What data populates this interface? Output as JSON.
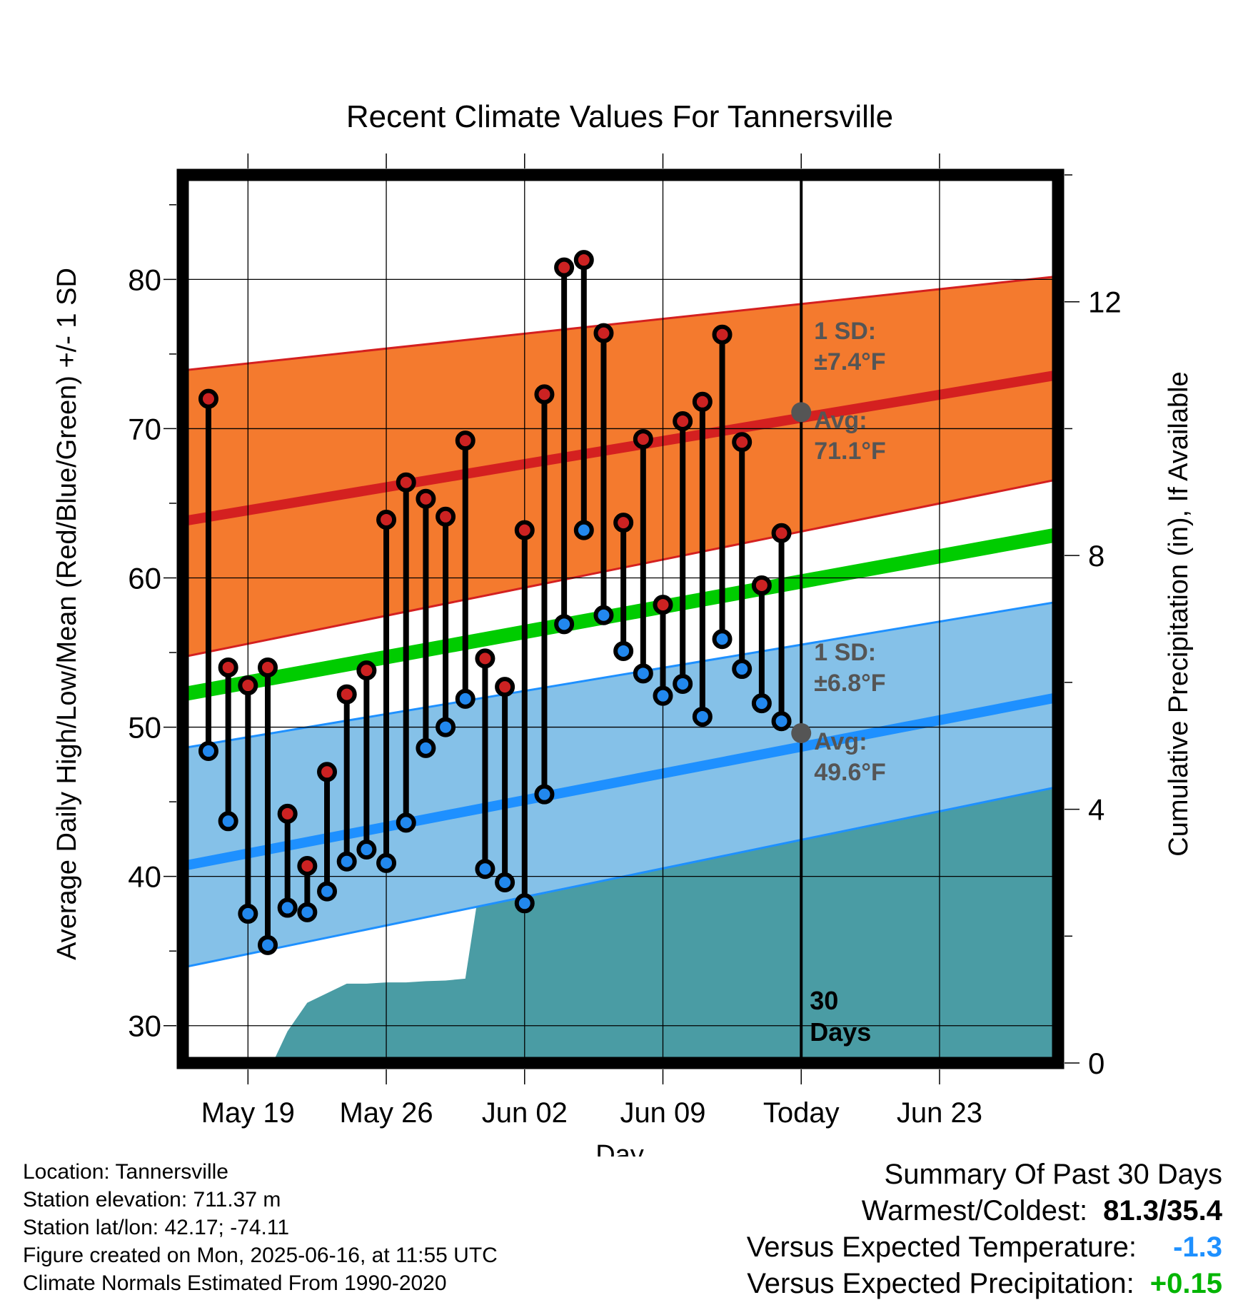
{
  "title": "Recent Climate Values For Tannersville",
  "y_left_label": "Average Daily High/Low/Mean (Red/Blue/Green) +/- 1 SD",
  "y_right_label": "Cumulative Precipitation (in), If Available",
  "x_label": "Day",
  "colors": {
    "high_marker": "#cc2222",
    "low_marker": "#2288ee",
    "high_band": "#f47a2e",
    "high_band_edge": "#d42020",
    "high_mean": "#d42020",
    "low_band": "#85c1e8",
    "low_band_edge": "#1e90ff",
    "low_mean": "#1e90ff",
    "mean_line": "#00cc00",
    "precip": "#4a9ca4",
    "annotation": "#555555",
    "temp_anomaly": "#1e90ff",
    "precip_anomaly": "#00b400"
  },
  "annotations": {
    "high_sd": "1 SD:",
    "high_sd_value": "±7.4°F",
    "high_avg": "Avg:",
    "high_avg_value": "71.1°F",
    "low_sd": "1 SD:",
    "low_sd_value": "±6.8°F",
    "low_avg": "Avg:",
    "low_avg_value": "49.6°F",
    "window_line1": "30",
    "window_line2": "Days"
  },
  "chart_data": {
    "type": "line",
    "title": "Recent Climate Values For Tannersville",
    "xlabel": "Day",
    "ylabel": "Average Daily High/Low/Mean (Red/Blue/Green) +/- 1 SD",
    "y2label": "Cumulative Precipitation (in), If Available",
    "x_range": [
      "2025-05-15.7",
      "2025-06-29"
    ],
    "ylim": [
      27.5,
      87
    ],
    "y2lim": [
      0,
      14
    ],
    "y_ticks": [
      30,
      40,
      50,
      60,
      70,
      80
    ],
    "y2_ticks": [
      0,
      4,
      8,
      12
    ],
    "x_ticks": [
      {
        "date": "2025-05-19",
        "label": "May 19"
      },
      {
        "date": "2025-05-26",
        "label": "May 26"
      },
      {
        "date": "2025-06-02",
        "label": "Jun 02"
      },
      {
        "date": "2025-06-09",
        "label": "Jun 09"
      },
      {
        "date": "2025-06-16",
        "label": "Today"
      },
      {
        "date": "2025-06-23",
        "label": "Jun 23"
      }
    ],
    "grid": true,
    "today": "2025-06-16",
    "days": [
      "2025-05-17",
      "2025-05-18",
      "2025-05-19",
      "2025-05-20",
      "2025-05-21",
      "2025-05-22",
      "2025-05-23",
      "2025-05-24",
      "2025-05-25",
      "2025-05-26",
      "2025-05-27",
      "2025-05-28",
      "2025-05-29",
      "2025-05-30",
      "2025-05-31",
      "2025-06-01",
      "2025-06-02",
      "2025-06-03",
      "2025-06-04",
      "2025-06-05",
      "2025-06-06",
      "2025-06-07",
      "2025-06-08",
      "2025-06-09",
      "2025-06-10",
      "2025-06-11",
      "2025-06-12",
      "2025-06-13",
      "2025-06-14",
      "2025-06-15"
    ],
    "highs": [
      72.0,
      54.0,
      52.8,
      54.0,
      44.2,
      40.7,
      47.0,
      52.2,
      53.8,
      63.9,
      66.4,
      65.3,
      64.1,
      69.2,
      54.6,
      52.7,
      63.2,
      72.3,
      80.8,
      81.3,
      76.4,
      63.7,
      69.3,
      58.2,
      70.5,
      71.8,
      76.3,
      69.1,
      59.5,
      63.0
    ],
    "lows": [
      48.4,
      43.7,
      37.5,
      35.4,
      37.9,
      37.6,
      39.0,
      41.0,
      41.8,
      40.9,
      43.6,
      48.6,
      50.0,
      51.9,
      40.5,
      39.6,
      38.2,
      45.5,
      56.9,
      63.2,
      57.5,
      55.1,
      53.6,
      52.1,
      52.9,
      50.7,
      55.9,
      53.9,
      51.6,
      50.4
    ],
    "normals": {
      "days": [
        "2025-05-15.7",
        "2025-06-29"
      ],
      "high_mean": [
        63.8,
        73.6
      ],
      "high_upper": [
        73.9,
        80.2
      ],
      "high_lower": [
        54.7,
        66.6
      ],
      "low_mean": [
        40.7,
        52.0
      ],
      "low_upper": [
        48.6,
        58.4
      ],
      "low_lower": [
        33.9,
        46.0
      ],
      "avg_mean": [
        52.2,
        62.9
      ]
    },
    "today_high_avg": 71.1,
    "today_low_avg": 49.6,
    "precip_cumulative": {
      "days": [
        "2025-05-19.8",
        "2025-05-20.4",
        "2025-05-21",
        "2025-05-22",
        "2025-05-23",
        "2025-05-24",
        "2025-05-25",
        "2025-05-26",
        "2025-05-27",
        "2025-05-28",
        "2025-05-29",
        "2025-05-30",
        "2025-05-31",
        "2025-06-01",
        "2025-06-02",
        "2025-06-03",
        "2025-06-04",
        "2025-06-05",
        "2025-06-06",
        "2025-06-07",
        "2025-06-08",
        "2025-06-09",
        "2025-06-10",
        "2025-06-11",
        "2025-06-12",
        "2025-06-13",
        "2025-06-14",
        "2025-06-15",
        "2025-06-16",
        "2025-06-29"
      ],
      "values": [
        0,
        0.1,
        0.5,
        0.95,
        1.1,
        1.25,
        1.25,
        1.27,
        1.27,
        1.29,
        1.3,
        1.33,
        3.35,
        3.35,
        3.35,
        3.35,
        3.35,
        3.36,
        3.4,
        3.62,
        3.65,
        4.45,
        4.5,
        4.5,
        4.5,
        4.5,
        4.75,
        4.75,
        4.75,
        4.75
      ]
    }
  },
  "footer": {
    "location": "Location: Tannersville",
    "elevation": "Station elevation: 711.37 m",
    "latlon": "Station lat/lon: 42.17; -74.11",
    "created": "Figure created on Mon, 2025-06-16, at 11:55 UTC",
    "normals": "Climate Normals Estimated From 1990-2020"
  },
  "summary": {
    "heading": "Summary Of Past 30 Days",
    "warm_cold_label": "Warmest/Coldest:",
    "warm_cold_value": "81.3/35.4",
    "temp_label": "Versus Expected Temperature:",
    "temp_value": "-1.3",
    "precip_label": "Versus Expected Precipitation:",
    "precip_value": "+0.15"
  }
}
